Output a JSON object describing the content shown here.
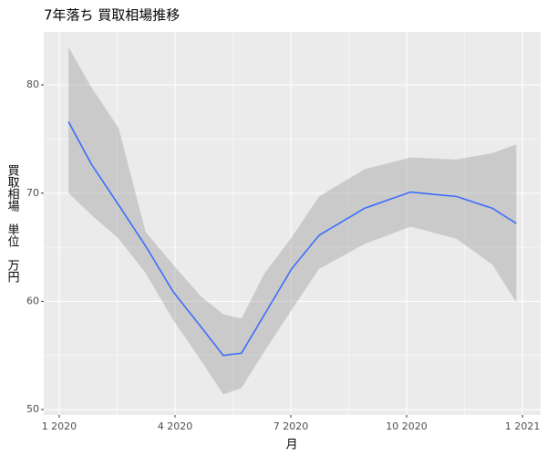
{
  "chart_data": {
    "type": "smooth",
    "title": "7年落ち 買取相場推移",
    "x_label": "月",
    "y_label": "買取相場　単位　万円",
    "x": [
      1.24,
      1.83,
      2.54,
      3.24,
      3.95,
      4.66,
      5.25,
      5.72,
      6.32,
      7.02,
      7.73,
      8.91,
      10.1,
      11.28,
      12.22,
      12.84
    ],
    "values": [
      76.6,
      72.7,
      68.9,
      65.1,
      60.9,
      57.7,
      55.0,
      55.2,
      58.8,
      63.0,
      66.1,
      68.6,
      70.1,
      69.7,
      68.6,
      67.2
    ],
    "upper": [
      83.5,
      79.8,
      76.0,
      66.4,
      63.4,
      60.5,
      58.8,
      58.4,
      62.6,
      65.9,
      69.7,
      72.2,
      73.3,
      73.1,
      73.7,
      74.5
    ],
    "lower": [
      70.0,
      68.0,
      65.8,
      62.6,
      58.3,
      54.6,
      51.4,
      52.0,
      55.4,
      59.2,
      63.0,
      65.3,
      66.9,
      65.8,
      63.4,
      59.9
    ],
    "color": "#3366ff",
    "band_color": "#999999",
    "xlim": [
      0.6,
      13.47
    ],
    "ylim": [
      49.5,
      84.9
    ],
    "xticks": [
      {
        "value": 1,
        "label": "1 2020"
      },
      {
        "value": 4,
        "label": "4 2020"
      },
      {
        "value": 7,
        "label": "7 2020"
      },
      {
        "value": 10,
        "label": "10 2020"
      },
      {
        "value": 13,
        "label": "1 2021"
      }
    ],
    "yticks": [
      50,
      60,
      70,
      80
    ],
    "grid": true
  }
}
